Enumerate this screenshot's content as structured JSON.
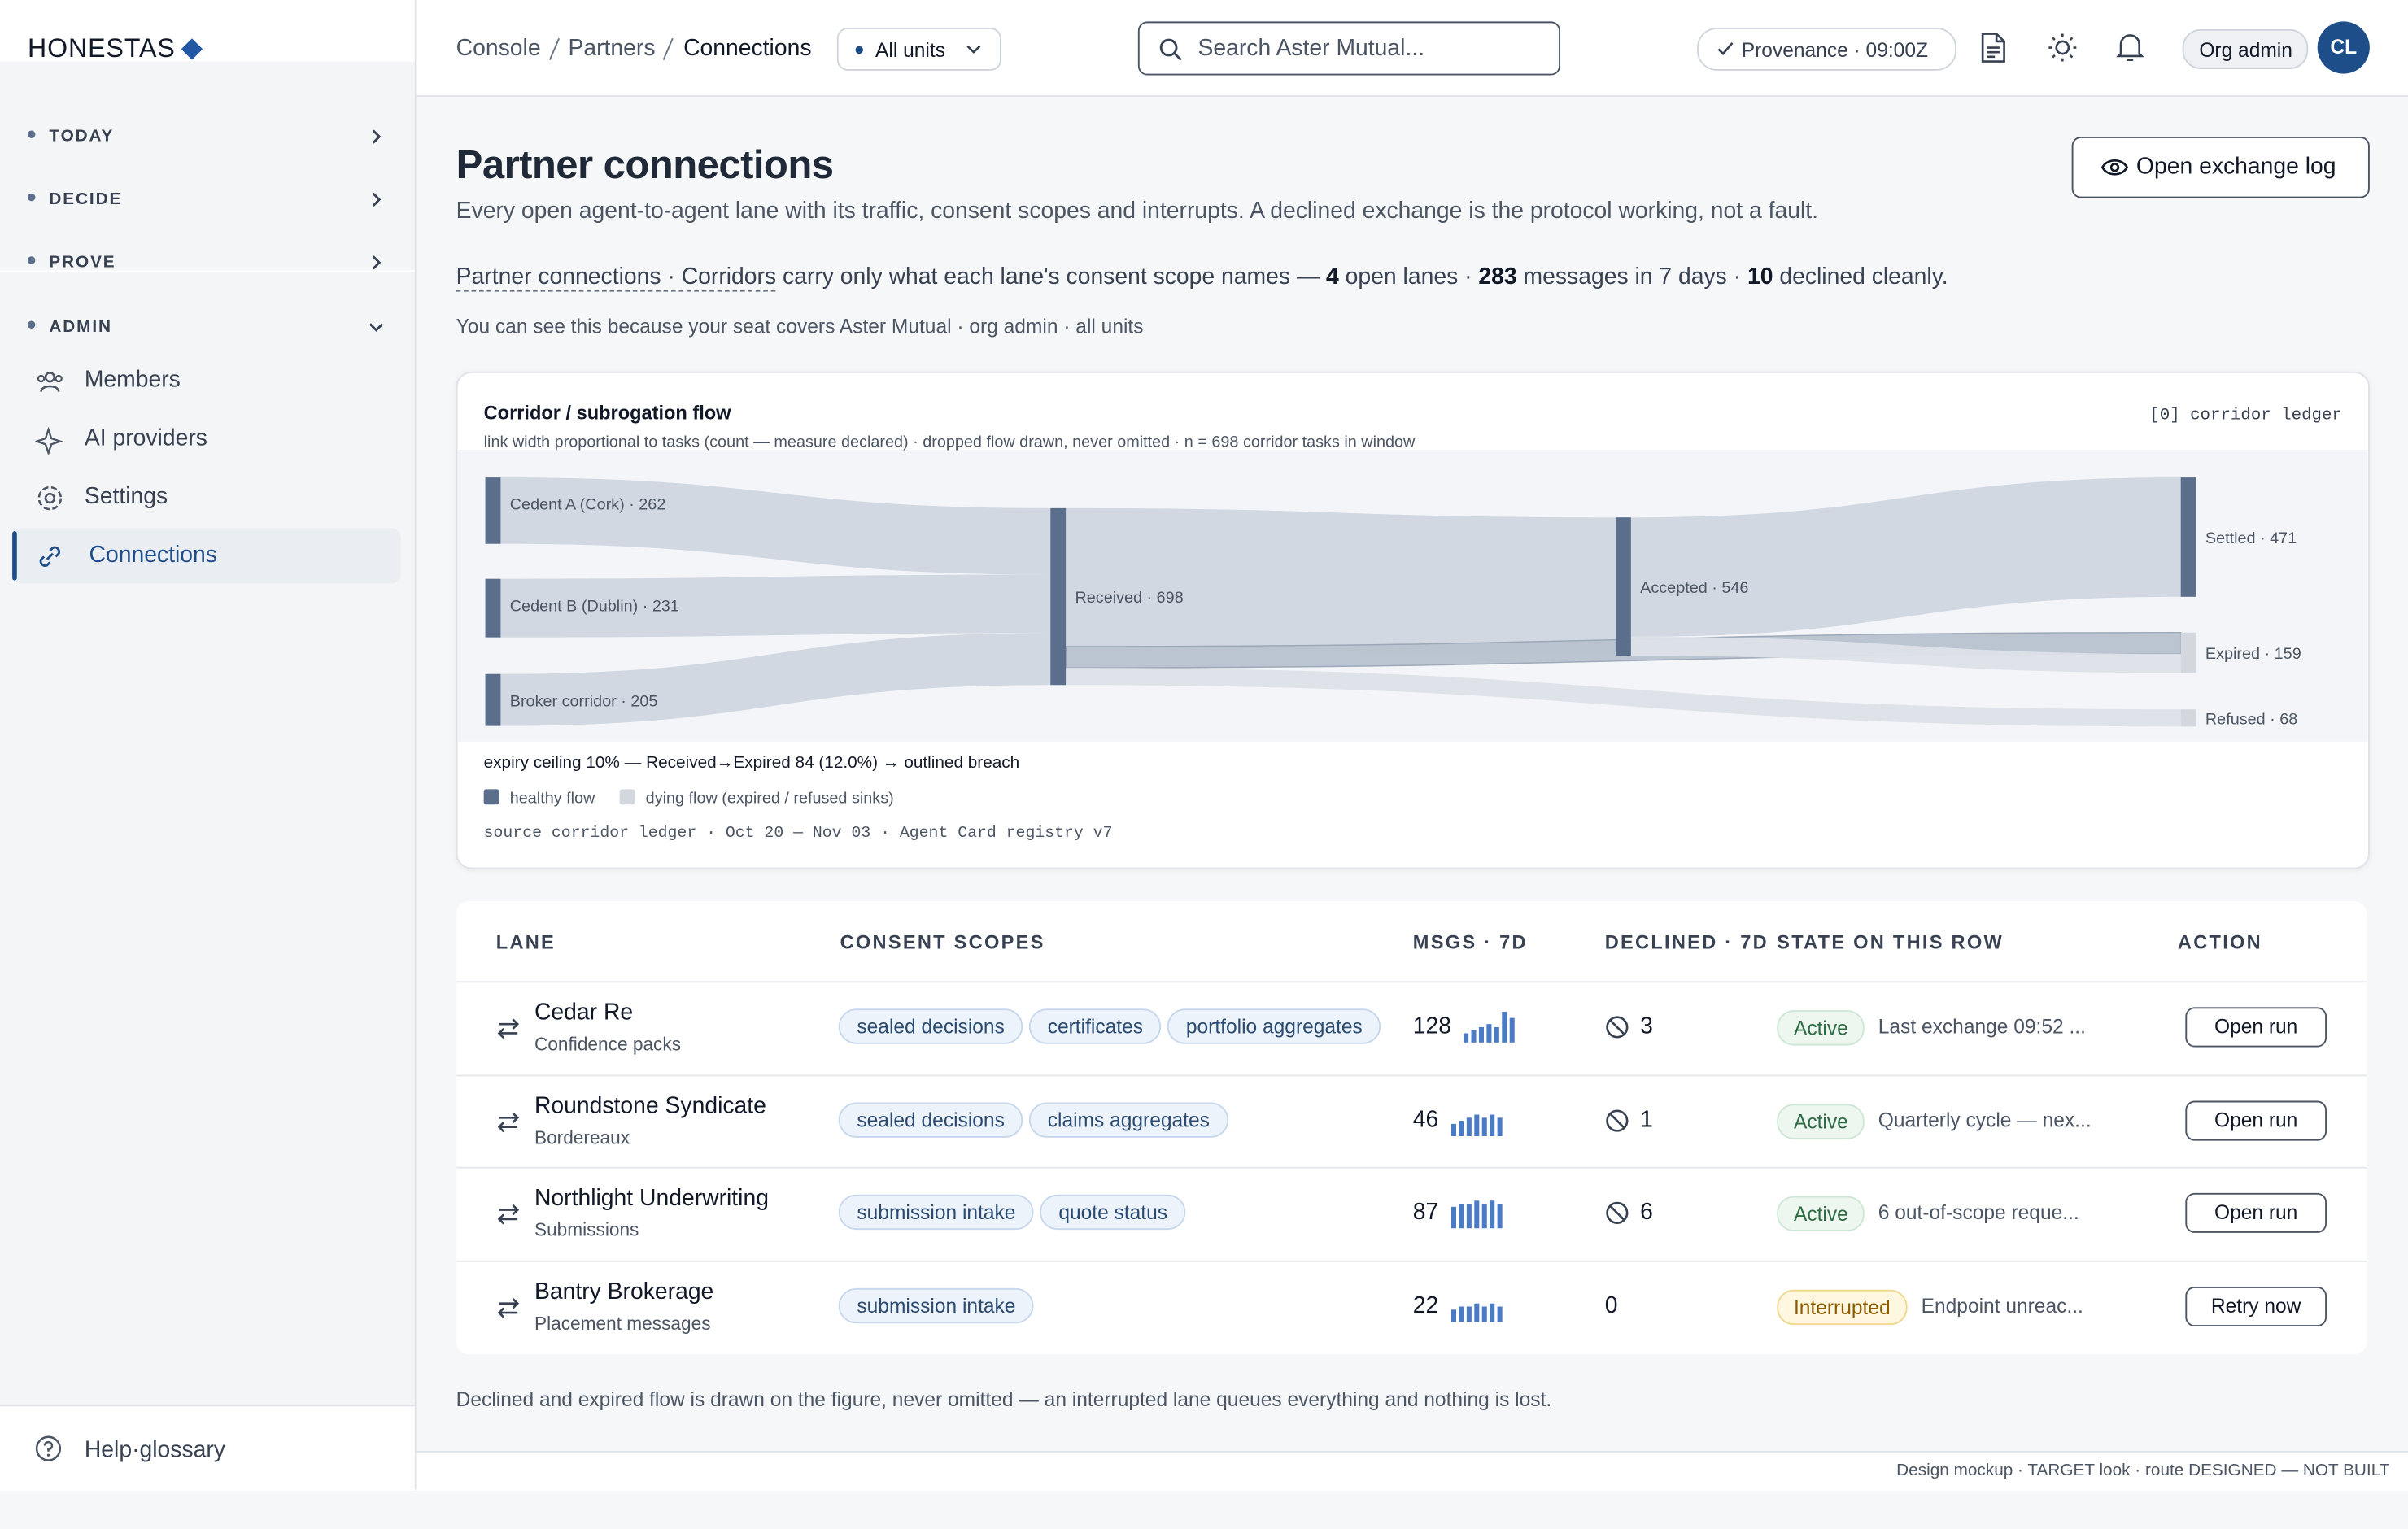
{
  "brand": "HONESTAS",
  "nav": {
    "groups": [
      "TODAY",
      "DECIDE",
      "PROVE",
      "ADMIN"
    ],
    "items": [
      "Members",
      "AI providers",
      "Settings",
      "Connections"
    ],
    "help": "Help·glossary"
  },
  "topbar": {
    "breadcrumb": [
      "Console",
      "Partners",
      "Connections"
    ],
    "unit_filter": "All units",
    "search": "Search Aster Mutual...",
    "provenance": "Provenance · 09:00Z",
    "role": "Org admin",
    "avatar": "CL"
  },
  "page": {
    "title": "Partner connections",
    "subtitle": "Every open agent-to-agent lane with its traffic, consent scopes and interrupts. A declined exchange is the protocol working, not a fault.",
    "button": "Open exchange log",
    "summary": {
      "link": "Partner connections · Corridors",
      "t1": " carry only what each lane's consent scope names — ",
      "lanes": 4,
      "t2": " open lanes · ",
      "messages": 283,
      "t3": " messages in 7 days · ",
      "declined": 10,
      "t4": " declined cleanly."
    },
    "scope_note": "You can see this because your seat covers Aster Mutual · org admin · all units",
    "footnote": "Declined and expired flow is drawn on the figure, never omitted — an interrupted lane queues everything and nothing is lost.",
    "footer": "Design mockup · TARGET look · route DESIGNED — NOT BUILT"
  },
  "figure": {
    "title": "Corridor / subrogation flow",
    "subtitle": "link width proportional to tasks (count — measure declared) · dropped flow drawn, never omitted · n = 698 corridor tasks in window",
    "ref": "[0] corridor ledger",
    "nodes": [
      {
        "label": "Cedent A (Cork) · 262",
        "value": 262,
        "color": "#5b6e8b"
      },
      {
        "label": "Cedent B (Dublin) · 231",
        "value": 231,
        "color": "#5b6e8b"
      },
      {
        "label": "Broker corridor · 205",
        "value": 205,
        "color": "#5b6e8b"
      },
      {
        "label": "Received · 698",
        "value": 698,
        "color": "#5b6e8b"
      },
      {
        "label": "Accepted · 546",
        "value": 546,
        "color": "#5b6e8b"
      },
      {
        "label": "Settled · 471",
        "value": 471,
        "color": "#5b6e8b"
      },
      {
        "label": "Expired · 159",
        "value": 159,
        "color": "#d3d8df"
      },
      {
        "label": "Refused · 68",
        "value": 68,
        "color": "#d3d8df"
      }
    ],
    "links": [
      {
        "source": 0,
        "target": 3,
        "value": 262
      },
      {
        "source": 1,
        "target": 3,
        "value": 231
      },
      {
        "source": 2,
        "target": 3,
        "value": 205
      },
      {
        "source": 3,
        "target": 4,
        "value": 546
      },
      {
        "source": 3,
        "target": 6,
        "value": 84
      },
      {
        "source": 3,
        "target": 7,
        "value": 68
      },
      {
        "source": 4,
        "target": 5,
        "value": 471
      },
      {
        "source": 4,
        "target": 6,
        "value": 75
      }
    ],
    "annotation": "expiry ceiling 10% — Received→Expired 84 (12.0%) → outlined breach",
    "legend": [
      {
        "label": "healthy flow",
        "color": "#5b6e8b"
      },
      {
        "label": "dying flow (expired / refused sinks)",
        "color": "#d3d8df"
      }
    ],
    "source": "source corridor ledger · Oct 20 — Nov 03 · Agent Card registry v7"
  },
  "table": {
    "columns": [
      "LANE",
      "CONSENT SCOPES",
      "MSGS · 7D",
      "DECLINED · 7D",
      "STATE ON THIS ROW",
      "ACTION"
    ],
    "rows": [
      {
        "name": "Cedar Re",
        "sub": "Confidence packs",
        "scopes": [
          "sealed decisions",
          "certificates",
          "portfolio aggregates"
        ],
        "msgs": 128,
        "spark": [
          3,
          4,
          5,
          6,
          5,
          10,
          8
        ],
        "declined": 3,
        "state": "Active",
        "note": "Last exchange 09:52 ...",
        "action": "Open run"
      },
      {
        "name": "Roundstone Syndicate",
        "sub": "Bordereaux",
        "scopes": [
          "sealed decisions",
          "claims aggregates"
        ],
        "msgs": 46,
        "spark": [
          4,
          5,
          6,
          7,
          6,
          7,
          6
        ],
        "declined": 1,
        "state": "Active",
        "note": "Quarterly cycle — nex...",
        "action": "Open run"
      },
      {
        "name": "Northlight Underwriting",
        "sub": "Submissions",
        "scopes": [
          "submission intake",
          "quote status"
        ],
        "msgs": 87,
        "spark": [
          7,
          8,
          8,
          9,
          8,
          9,
          8
        ],
        "declined": 6,
        "state": "Active",
        "note": "6 out-of-scope reque...",
        "action": "Open run"
      },
      {
        "name": "Bantry Brokerage",
        "sub": "Placement messages",
        "scopes": [
          "submission intake"
        ],
        "msgs": 22,
        "spark": [
          4,
          5,
          5,
          6,
          5,
          6,
          5
        ],
        "declined": 0,
        "state": "Interrupted",
        "note": "Endpoint unreac...",
        "action": "Retry now"
      }
    ]
  }
}
